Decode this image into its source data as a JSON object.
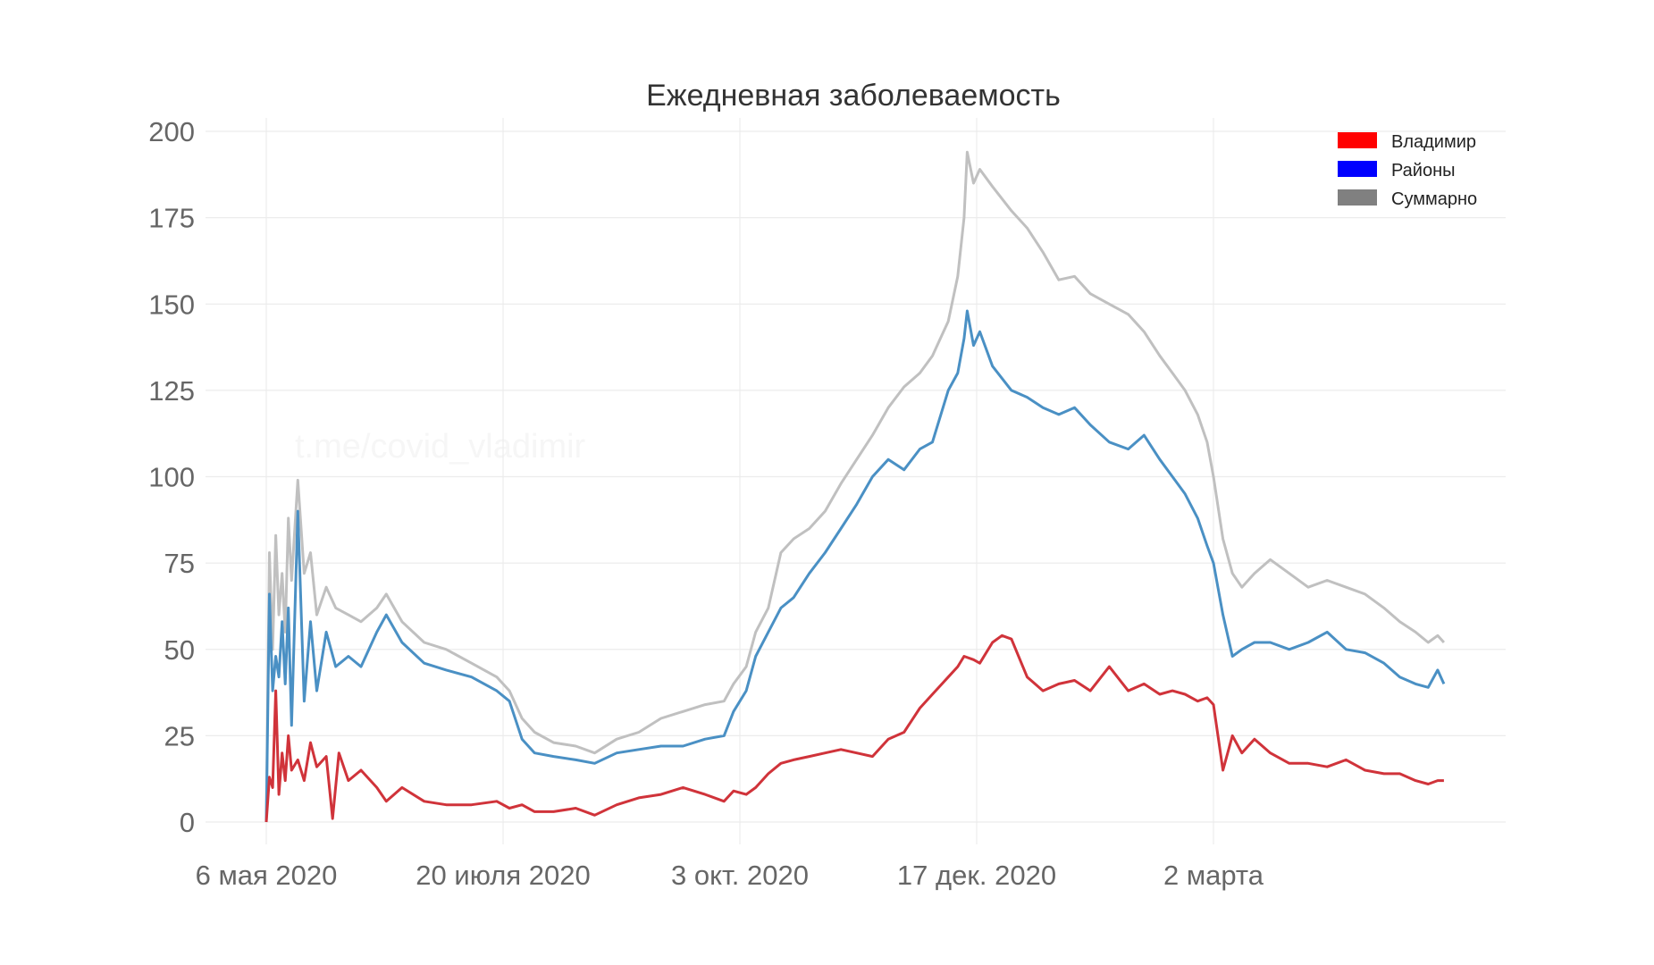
{
  "chart_data": {
    "type": "line",
    "title": "Ежедневная заболеваемость",
    "watermark": "t.me/covid_vladimir",
    "ylim": [
      0,
      200
    ],
    "yticks": [
      0,
      25,
      50,
      75,
      100,
      125,
      150,
      175,
      200
    ],
    "x_start": "2020-05-06",
    "x_end": "2021-05-14",
    "xticks": [
      {
        "date": "2020-05-06",
        "label": "6 мая 2020"
      },
      {
        "date": "2020-07-20",
        "label": "20 июля 2020"
      },
      {
        "date": "2020-10-03",
        "label": "3 окт. 2020"
      },
      {
        "date": "2020-12-17",
        "label": "17 дек. 2020"
      },
      {
        "date": "2021-03-02",
        "label": "2 марта"
      }
    ],
    "grid": true,
    "legend_position": "top-right",
    "legend": [
      {
        "name": "Владимир",
        "color": "#ff0000"
      },
      {
        "name": "Районы",
        "color": "#0000ff"
      },
      {
        "name": "Суммарно",
        "color": "#808080"
      }
    ],
    "series": [
      {
        "name": "Суммарно",
        "color": "#c0c0c0",
        "points": [
          [
            "2020-05-06",
            0
          ],
          [
            "2020-05-07",
            78
          ],
          [
            "2020-05-08",
            50
          ],
          [
            "2020-05-09",
            83
          ],
          [
            "2020-05-10",
            60
          ],
          [
            "2020-05-11",
            72
          ],
          [
            "2020-05-12",
            55
          ],
          [
            "2020-05-13",
            88
          ],
          [
            "2020-05-14",
            70
          ],
          [
            "2020-05-16",
            99
          ],
          [
            "2020-05-18",
            72
          ],
          [
            "2020-05-20",
            78
          ],
          [
            "2020-05-22",
            60
          ],
          [
            "2020-05-25",
            68
          ],
          [
            "2020-05-28",
            62
          ],
          [
            "2020-06-01",
            60
          ],
          [
            "2020-06-05",
            58
          ],
          [
            "2020-06-10",
            62
          ],
          [
            "2020-06-13",
            66
          ],
          [
            "2020-06-18",
            58
          ],
          [
            "2020-06-25",
            52
          ],
          [
            "2020-07-02",
            50
          ],
          [
            "2020-07-10",
            46
          ],
          [
            "2020-07-18",
            42
          ],
          [
            "2020-07-22",
            38
          ],
          [
            "2020-07-26",
            30
          ],
          [
            "2020-07-30",
            26
          ],
          [
            "2020-08-05",
            23
          ],
          [
            "2020-08-12",
            22
          ],
          [
            "2020-08-18",
            20
          ],
          [
            "2020-08-25",
            24
          ],
          [
            "2020-09-01",
            26
          ],
          [
            "2020-09-08",
            30
          ],
          [
            "2020-09-15",
            32
          ],
          [
            "2020-09-22",
            34
          ],
          [
            "2020-09-28",
            35
          ],
          [
            "2020-10-01",
            40
          ],
          [
            "2020-10-05",
            45
          ],
          [
            "2020-10-08",
            55
          ],
          [
            "2020-10-12",
            62
          ],
          [
            "2020-10-16",
            78
          ],
          [
            "2020-10-20",
            82
          ],
          [
            "2020-10-25",
            85
          ],
          [
            "2020-10-30",
            90
          ],
          [
            "2020-11-04",
            98
          ],
          [
            "2020-11-09",
            105
          ],
          [
            "2020-11-14",
            112
          ],
          [
            "2020-11-19",
            120
          ],
          [
            "2020-11-24",
            126
          ],
          [
            "2020-11-29",
            130
          ],
          [
            "2020-12-03",
            135
          ],
          [
            "2020-12-08",
            145
          ],
          [
            "2020-12-11",
            158
          ],
          [
            "2020-12-13",
            175
          ],
          [
            "2020-12-14",
            194
          ],
          [
            "2020-12-16",
            185
          ],
          [
            "2020-12-18",
            189
          ],
          [
            "2020-12-22",
            184
          ],
          [
            "2020-12-28",
            177
          ],
          [
            "2021-01-02",
            172
          ],
          [
            "2021-01-07",
            165
          ],
          [
            "2021-01-12",
            157
          ],
          [
            "2021-01-17",
            158
          ],
          [
            "2021-01-22",
            153
          ],
          [
            "2021-01-28",
            150
          ],
          [
            "2021-02-03",
            147
          ],
          [
            "2021-02-08",
            142
          ],
          [
            "2021-02-13",
            135
          ],
          [
            "2021-02-17",
            130
          ],
          [
            "2021-02-21",
            125
          ],
          [
            "2021-02-25",
            118
          ],
          [
            "2021-02-28",
            110
          ],
          [
            "2021-03-02",
            100
          ],
          [
            "2021-03-05",
            82
          ],
          [
            "2021-03-08",
            72
          ],
          [
            "2021-03-11",
            68
          ],
          [
            "2021-03-15",
            72
          ],
          [
            "2021-03-20",
            76
          ],
          [
            "2021-03-26",
            72
          ],
          [
            "2021-04-01",
            68
          ],
          [
            "2021-04-07",
            70
          ],
          [
            "2021-04-13",
            68
          ],
          [
            "2021-04-19",
            66
          ],
          [
            "2021-04-25",
            62
          ],
          [
            "2021-04-30",
            58
          ],
          [
            "2021-05-05",
            55
          ],
          [
            "2021-05-09",
            52
          ],
          [
            "2021-05-12",
            54
          ],
          [
            "2021-05-14",
            52
          ]
        ]
      },
      {
        "name": "Районы",
        "color": "#4a90c4",
        "points": [
          [
            "2020-05-06",
            0
          ],
          [
            "2020-05-07",
            66
          ],
          [
            "2020-05-08",
            38
          ],
          [
            "2020-05-09",
            48
          ],
          [
            "2020-05-10",
            42
          ],
          [
            "2020-05-11",
            58
          ],
          [
            "2020-05-12",
            40
          ],
          [
            "2020-05-13",
            62
          ],
          [
            "2020-05-14",
            28
          ],
          [
            "2020-05-16",
            90
          ],
          [
            "2020-05-18",
            35
          ],
          [
            "2020-05-20",
            58
          ],
          [
            "2020-05-22",
            38
          ],
          [
            "2020-05-25",
            55
          ],
          [
            "2020-05-28",
            45
          ],
          [
            "2020-06-01",
            48
          ],
          [
            "2020-06-05",
            45
          ],
          [
            "2020-06-10",
            55
          ],
          [
            "2020-06-13",
            60
          ],
          [
            "2020-06-18",
            52
          ],
          [
            "2020-06-25",
            46
          ],
          [
            "2020-07-02",
            44
          ],
          [
            "2020-07-10",
            42
          ],
          [
            "2020-07-18",
            38
          ],
          [
            "2020-07-22",
            35
          ],
          [
            "2020-07-26",
            24
          ],
          [
            "2020-07-30",
            20
          ],
          [
            "2020-08-05",
            19
          ],
          [
            "2020-08-12",
            18
          ],
          [
            "2020-08-18",
            17
          ],
          [
            "2020-08-25",
            20
          ],
          [
            "2020-09-01",
            21
          ],
          [
            "2020-09-08",
            22
          ],
          [
            "2020-09-15",
            22
          ],
          [
            "2020-09-22",
            24
          ],
          [
            "2020-09-28",
            25
          ],
          [
            "2020-10-01",
            32
          ],
          [
            "2020-10-05",
            38
          ],
          [
            "2020-10-08",
            48
          ],
          [
            "2020-10-12",
            55
          ],
          [
            "2020-10-16",
            62
          ],
          [
            "2020-10-20",
            65
          ],
          [
            "2020-10-25",
            72
          ],
          [
            "2020-10-30",
            78
          ],
          [
            "2020-11-04",
            85
          ],
          [
            "2020-11-09",
            92
          ],
          [
            "2020-11-14",
            100
          ],
          [
            "2020-11-19",
            105
          ],
          [
            "2020-11-24",
            102
          ],
          [
            "2020-11-29",
            108
          ],
          [
            "2020-12-03",
            110
          ],
          [
            "2020-12-08",
            125
          ],
          [
            "2020-12-11",
            130
          ],
          [
            "2020-12-13",
            140
          ],
          [
            "2020-12-14",
            148
          ],
          [
            "2020-12-16",
            138
          ],
          [
            "2020-12-18",
            142
          ],
          [
            "2020-12-22",
            132
          ],
          [
            "2020-12-28",
            125
          ],
          [
            "2021-01-02",
            123
          ],
          [
            "2021-01-07",
            120
          ],
          [
            "2021-01-12",
            118
          ],
          [
            "2021-01-17",
            120
          ],
          [
            "2021-01-22",
            115
          ],
          [
            "2021-01-28",
            110
          ],
          [
            "2021-02-03",
            108
          ],
          [
            "2021-02-08",
            112
          ],
          [
            "2021-02-13",
            105
          ],
          [
            "2021-02-17",
            100
          ],
          [
            "2021-02-21",
            95
          ],
          [
            "2021-02-25",
            88
          ],
          [
            "2021-02-28",
            80
          ],
          [
            "2021-03-02",
            75
          ],
          [
            "2021-03-05",
            60
          ],
          [
            "2021-03-08",
            48
          ],
          [
            "2021-03-11",
            50
          ],
          [
            "2021-03-15",
            52
          ],
          [
            "2021-03-20",
            52
          ],
          [
            "2021-03-26",
            50
          ],
          [
            "2021-04-01",
            52
          ],
          [
            "2021-04-07",
            55
          ],
          [
            "2021-04-13",
            50
          ],
          [
            "2021-04-19",
            49
          ],
          [
            "2021-04-25",
            46
          ],
          [
            "2021-04-30",
            42
          ],
          [
            "2021-05-05",
            40
          ],
          [
            "2021-05-09",
            39
          ],
          [
            "2021-05-12",
            44
          ],
          [
            "2021-05-14",
            40
          ]
        ]
      },
      {
        "name": "Владимир",
        "color": "#d0333a",
        "points": [
          [
            "2020-05-06",
            0
          ],
          [
            "2020-05-07",
            13
          ],
          [
            "2020-05-08",
            10
          ],
          [
            "2020-05-09",
            38
          ],
          [
            "2020-05-10",
            8
          ],
          [
            "2020-05-11",
            20
          ],
          [
            "2020-05-12",
            12
          ],
          [
            "2020-05-13",
            25
          ],
          [
            "2020-05-14",
            15
          ],
          [
            "2020-05-16",
            18
          ],
          [
            "2020-05-18",
            12
          ],
          [
            "2020-05-20",
            23
          ],
          [
            "2020-05-22",
            16
          ],
          [
            "2020-05-25",
            19
          ],
          [
            "2020-05-27",
            1
          ],
          [
            "2020-05-29",
            20
          ],
          [
            "2020-06-01",
            12
          ],
          [
            "2020-06-05",
            15
          ],
          [
            "2020-06-10",
            10
          ],
          [
            "2020-06-13",
            6
          ],
          [
            "2020-06-18",
            10
          ],
          [
            "2020-06-25",
            6
          ],
          [
            "2020-07-02",
            5
          ],
          [
            "2020-07-10",
            5
          ],
          [
            "2020-07-18",
            6
          ],
          [
            "2020-07-22",
            4
          ],
          [
            "2020-07-26",
            5
          ],
          [
            "2020-07-30",
            3
          ],
          [
            "2020-08-05",
            3
          ],
          [
            "2020-08-12",
            4
          ],
          [
            "2020-08-18",
            2
          ],
          [
            "2020-08-25",
            5
          ],
          [
            "2020-09-01",
            7
          ],
          [
            "2020-09-08",
            8
          ],
          [
            "2020-09-15",
            10
          ],
          [
            "2020-09-22",
            8
          ],
          [
            "2020-09-28",
            6
          ],
          [
            "2020-10-01",
            9
          ],
          [
            "2020-10-05",
            8
          ],
          [
            "2020-10-08",
            10
          ],
          [
            "2020-10-12",
            14
          ],
          [
            "2020-10-16",
            17
          ],
          [
            "2020-10-20",
            18
          ],
          [
            "2020-10-25",
            19
          ],
          [
            "2020-10-30",
            20
          ],
          [
            "2020-11-04",
            21
          ],
          [
            "2020-11-09",
            20
          ],
          [
            "2020-11-14",
            19
          ],
          [
            "2020-11-19",
            24
          ],
          [
            "2020-11-24",
            26
          ],
          [
            "2020-11-29",
            33
          ],
          [
            "2020-12-03",
            37
          ],
          [
            "2020-12-08",
            42
          ],
          [
            "2020-12-11",
            45
          ],
          [
            "2020-12-13",
            48
          ],
          [
            "2020-12-16",
            47
          ],
          [
            "2020-12-18",
            46
          ],
          [
            "2020-12-22",
            52
          ],
          [
            "2020-12-25",
            54
          ],
          [
            "2020-12-28",
            53
          ],
          [
            "2021-01-02",
            42
          ],
          [
            "2021-01-07",
            38
          ],
          [
            "2021-01-12",
            40
          ],
          [
            "2021-01-17",
            41
          ],
          [
            "2021-01-22",
            38
          ],
          [
            "2021-01-28",
            45
          ],
          [
            "2021-02-03",
            38
          ],
          [
            "2021-02-08",
            40
          ],
          [
            "2021-02-13",
            37
          ],
          [
            "2021-02-17",
            38
          ],
          [
            "2021-02-21",
            37
          ],
          [
            "2021-02-25",
            35
          ],
          [
            "2021-02-28",
            36
          ],
          [
            "2021-03-02",
            34
          ],
          [
            "2021-03-05",
            15
          ],
          [
            "2021-03-08",
            25
          ],
          [
            "2021-03-11",
            20
          ],
          [
            "2021-03-15",
            24
          ],
          [
            "2021-03-20",
            20
          ],
          [
            "2021-03-26",
            17
          ],
          [
            "2021-04-01",
            17
          ],
          [
            "2021-04-07",
            16
          ],
          [
            "2021-04-13",
            18
          ],
          [
            "2021-04-19",
            15
          ],
          [
            "2021-04-25",
            14
          ],
          [
            "2021-04-30",
            14
          ],
          [
            "2021-05-05",
            12
          ],
          [
            "2021-05-09",
            11
          ],
          [
            "2021-05-12",
            12
          ],
          [
            "2021-05-14",
            12
          ]
        ]
      }
    ]
  }
}
